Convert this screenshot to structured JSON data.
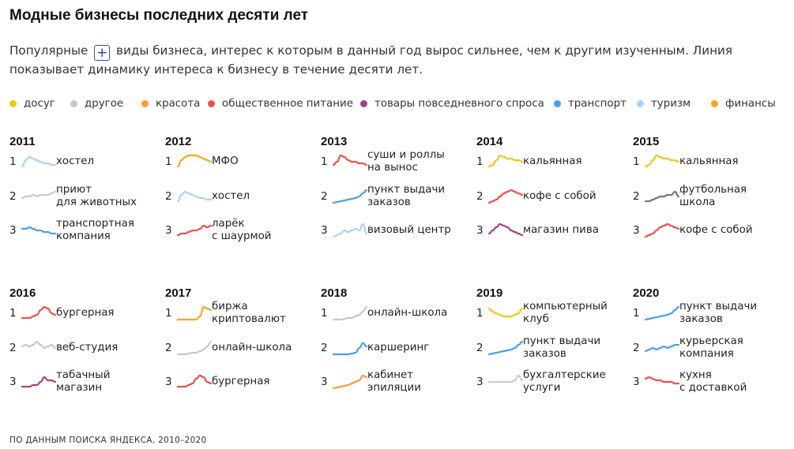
{
  "title": "Модные бизнесы последних десяти лет",
  "description": {
    "before": "Популярные",
    "plus": "+",
    "after": "виды бизнеса, интерес к которым в данный год вырос сильнее, чем к другим изученным. Линия показывает динамику интереса к бизнесу в течение десяти лет."
  },
  "legend": [
    {
      "label": "досуг",
      "color": "#f5c518"
    },
    {
      "label": "другое",
      "color": "#c8c8c8"
    },
    {
      "label": "красота",
      "color": "#ff9a3c"
    },
    {
      "label": "общественное питание",
      "color": "#f0504a"
    },
    {
      "label": "товары повседневного спроса",
      "color": "#a8407e"
    },
    {
      "label": "транспорт",
      "color": "#4a9ef0"
    },
    {
      "label": "туризм",
      "color": "#a9d4f5"
    },
    {
      "label": "финансы",
      "color": "#f5a623"
    }
  ],
  "colors": {
    "leisure": "#f5c518",
    "other": "#c8c8c8",
    "beauty": "#ff9a3c",
    "food": "#f0504a",
    "goods": "#a8407e",
    "transport": "#4a9ef0",
    "tourism": "#a9d4f5",
    "finance": "#f5a623"
  },
  "years": [
    {
      "year": "2011",
      "items": [
        {
          "rank": "1",
          "label": "хостел",
          "color": "#a9d4f5",
          "trend": [
            2,
            6,
            8,
            7,
            6,
            5,
            4,
            4,
            3,
            3
          ]
        },
        {
          "rank": "2",
          "label": "приют\nдля животных",
          "color": "#c8c8c8",
          "trend": [
            4,
            5,
            5,
            6,
            5,
            6,
            6,
            6,
            7,
            8
          ]
        },
        {
          "rank": "3",
          "label": "транспортная\nкомпания",
          "color": "#4a9ef0",
          "trend": [
            6,
            6,
            7,
            6,
            5,
            5,
            4,
            4,
            3,
            3
          ]
        }
      ]
    },
    {
      "year": "2012",
      "items": [
        {
          "rank": "1",
          "label": "МФО",
          "color": "#f5a623",
          "trend": [
            2,
            6,
            8,
            9,
            9,
            9,
            8,
            7,
            6,
            5
          ]
        },
        {
          "rank": "2",
          "label": "хостел",
          "color": "#a9d4f5",
          "trend": [
            2,
            6,
            8,
            7,
            6,
            5,
            4,
            4,
            3,
            3
          ]
        },
        {
          "rank": "3",
          "label": "ларёк\nс шаурмой",
          "color": "#f0504a",
          "trend": [
            2,
            3,
            3,
            4,
            5,
            5,
            6,
            8,
            7,
            8
          ]
        }
      ]
    },
    {
      "year": "2013",
      "items": [
        {
          "rank": "1",
          "label": "суши и роллы\nна вынос",
          "color": "#f0504a",
          "trend": [
            3,
            5,
            9,
            8,
            6,
            5,
            5,
            4,
            4,
            3
          ]
        },
        {
          "rank": "2",
          "label": "пункт выдачи\nзаказов",
          "color": "#4a9ef0",
          "trend": [
            1,
            1.5,
            2,
            2.5,
            3,
            3.5,
            4,
            5,
            7,
            9
          ]
        },
        {
          "rank": "3",
          "label": "визовый центр",
          "color": "#a9d4f5",
          "trend": [
            1,
            2,
            3,
            5,
            4,
            5,
            6,
            5,
            9,
            3
          ]
        }
      ]
    },
    {
      "year": "2014",
      "items": [
        {
          "rank": "1",
          "label": "кальянная",
          "color": "#f5c518",
          "trend": [
            2,
            3,
            6,
            9,
            8,
            7,
            7,
            6,
            6,
            5
          ]
        },
        {
          "rank": "2",
          "label": "кофе с собой",
          "color": "#f0504a",
          "trend": [
            1,
            2,
            3,
            5,
            7,
            8,
            9,
            8,
            7,
            6
          ]
        },
        {
          "rank": "3",
          "label": "магазин пива",
          "color": "#a8407e",
          "trend": [
            3,
            5,
            7,
            9,
            8,
            7,
            5,
            4,
            3,
            2
          ]
        }
      ]
    },
    {
      "year": "2015",
      "items": [
        {
          "rank": "1",
          "label": "кальянная",
          "color": "#f5c518",
          "trend": [
            2,
            3,
            6,
            9,
            8,
            7,
            7,
            6,
            6,
            5
          ]
        },
        {
          "rank": "2",
          "label": "футбольная\nшкола",
          "color": "#777777",
          "trend": [
            2,
            2,
            3,
            4,
            5,
            5,
            6,
            6,
            8,
            5
          ]
        },
        {
          "rank": "3",
          "label": "кофе с собой",
          "color": "#f0504a",
          "trend": [
            1,
            2,
            3,
            5,
            7,
            8,
            9,
            8,
            7,
            6
          ]
        }
      ]
    },
    {
      "year": "2016",
      "items": [
        {
          "rank": "1",
          "label": "бургерная",
          "color": "#f0504a",
          "trend": [
            2,
            2,
            2,
            3,
            4,
            7,
            9,
            8,
            5,
            4
          ]
        },
        {
          "rank": "2",
          "label": "веб-студия",
          "color": "#c8c8c8",
          "trend": [
            6,
            7,
            6,
            7,
            9,
            7,
            5,
            6,
            7,
            5
          ]
        },
        {
          "rank": "3",
          "label": "табачный\nмагазин",
          "color": "#a8407e",
          "trend": [
            2,
            2,
            2,
            3,
            3,
            5,
            8,
            6,
            6,
            5
          ]
        }
      ]
    },
    {
      "year": "2017",
      "items": [
        {
          "rank": "1",
          "label": "биржа\nкриптовалют",
          "color": "#f5a623",
          "trend": [
            1,
            1,
            1,
            1,
            1,
            1,
            3,
            9,
            8,
            7
          ]
        },
        {
          "rank": "2",
          "label": "онлайн-школа",
          "color": "#c8c8c8",
          "trend": [
            1,
            1,
            1,
            1.5,
            2,
            2,
            3,
            4,
            6,
            9
          ]
        },
        {
          "rank": "3",
          "label": "бургерная",
          "color": "#f0504a",
          "trend": [
            2,
            2,
            2,
            3,
            4,
            7,
            9,
            8,
            5,
            4
          ]
        }
      ]
    },
    {
      "year": "2018",
      "items": [
        {
          "rank": "1",
          "label": "онлайн-школа",
          "color": "#c8c8c8",
          "trend": [
            1,
            1,
            1,
            1.5,
            2,
            2,
            3,
            4,
            6,
            9
          ]
        },
        {
          "rank": "2",
          "label": "каршеринг",
          "color": "#4a9ef0",
          "trend": [
            1,
            1,
            1,
            1,
            1,
            1.5,
            2,
            5,
            8,
            6
          ]
        },
        {
          "rank": "3",
          "label": "кабинет\nэпиляции",
          "color": "#ff9a3c",
          "trend": [
            1,
            1.5,
            2,
            2.5,
            3,
            4,
            5,
            6,
            9,
            8
          ]
        }
      ]
    },
    {
      "year": "2019",
      "items": [
        {
          "rank": "1",
          "label": "компьютерный\nклуб",
          "color": "#f5c518",
          "trend": [
            8,
            6,
            5,
            4,
            3,
            3,
            3,
            4,
            5,
            8
          ]
        },
        {
          "rank": "2",
          "label": "пункт выдачи\nзаказов",
          "color": "#4a9ef0",
          "trend": [
            1,
            1.5,
            2,
            2.5,
            3,
            3.5,
            4,
            5,
            7,
            9
          ]
        },
        {
          "rank": "3",
          "label": "бухгалтерские\nуслуги",
          "color": "#c8c8c8",
          "trend": [
            5,
            5,
            5,
            5,
            5,
            5,
            5,
            6,
            9,
            6
          ]
        }
      ]
    },
    {
      "year": "2020",
      "items": [
        {
          "rank": "1",
          "label": "пункт выдачи\nзаказов",
          "color": "#4a9ef0",
          "trend": [
            1,
            1.5,
            2,
            2.5,
            3,
            3.5,
            4,
            5,
            7,
            9
          ]
        },
        {
          "rank": "2",
          "label": "курьерская\nкомпания",
          "color": "#4a9ef0",
          "trend": [
            3,
            4,
            5,
            4,
            5,
            6,
            5,
            6,
            7,
            7
          ]
        },
        {
          "rank": "3",
          "label": "кухня\nс доставкой",
          "color": "#f0504a",
          "trend": [
            7,
            8,
            7,
            6,
            6,
            5,
            5,
            5,
            4,
            4
          ]
        }
      ]
    }
  ],
  "source": "ПО ДАННЫМ ПОИСКА ЯНДЕКСА, 2010–2020"
}
